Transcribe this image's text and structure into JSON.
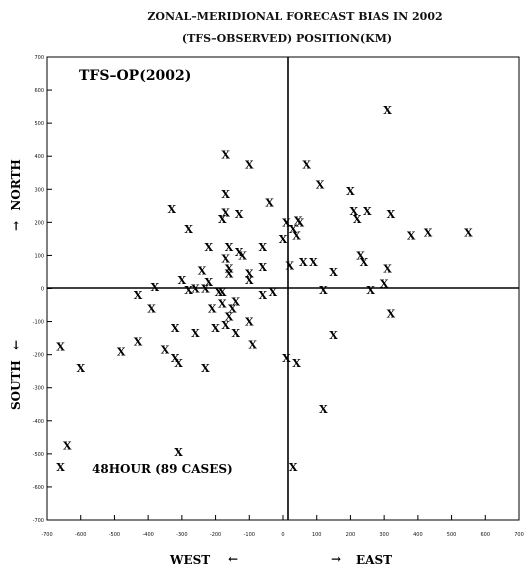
{
  "chart_data": {
    "type": "scatter",
    "title": "ZONAL–MERIDIONAL FORECAST BIAS IN 2002",
    "subtitle": "(TFS–OBSERVED) POSITION(KM)",
    "xlabel_left": "WEST",
    "xlabel_right": "EAST",
    "ylabel_top": "NORTH",
    "ylabel_bottom": "SOUTH",
    "ylabel_top_arrow": "→",
    "ylabel_bottom_arrow": "←",
    "xlabel_left_arrow": "←",
    "xlabel_right_arrow": "→",
    "annotation_top": "TFS–OP(2002)",
    "annotation_bottom": "48HOUR (89 CASES)",
    "marker": "X",
    "xlim": [
      -700,
      700
    ],
    "ylim": [
      -700,
      700
    ],
    "grid": false,
    "x_tick_labels": [
      "-700",
      "-600",
      "-500",
      "-400",
      "-300",
      "-200",
      "-100",
      "0",
      "100",
      "200",
      "300",
      "400",
      "500",
      "600",
      "700"
    ],
    "y_tick_labels": [
      "700",
      "600",
      "500",
      "400",
      "300",
      "200",
      "100",
      "0",
      "-100",
      "-200",
      "-300",
      "-400",
      "-500",
      "-600",
      "-700"
    ],
    "points": [
      [
        310,
        540
      ],
      [
        -170,
        405
      ],
      [
        -100,
        375
      ],
      [
        70,
        375
      ],
      [
        110,
        315
      ],
      [
        200,
        295
      ],
      [
        -170,
        285
      ],
      [
        -40,
        260
      ],
      [
        -330,
        240
      ],
      [
        -170,
        230
      ],
      [
        210,
        235
      ],
      [
        250,
        235
      ],
      [
        320,
        225
      ],
      [
        -180,
        210
      ],
      [
        220,
        210
      ],
      [
        -280,
        180
      ],
      [
        380,
        160
      ],
      [
        430,
        170
      ],
      [
        550,
        170
      ],
      [
        0,
        150
      ],
      [
        40,
        160
      ],
      [
        30,
        180
      ],
      [
        50,
        200
      ],
      [
        45,
        205
      ],
      [
        -220,
        125
      ],
      [
        -160,
        125
      ],
      [
        -130,
        110
      ],
      [
        -120,
        100
      ],
      [
        -60,
        125
      ],
      [
        10,
        200
      ],
      [
        -170,
        90
      ],
      [
        -100,
        45
      ],
      [
        -240,
        55
      ],
      [
        -160,
        60
      ],
      [
        -60,
        65
      ],
      [
        20,
        70
      ],
      [
        60,
        80
      ],
      [
        90,
        80
      ],
      [
        150,
        50
      ],
      [
        230,
        100
      ],
      [
        240,
        80
      ],
      [
        310,
        60
      ],
      [
        -300,
        25
      ],
      [
        -220,
        20
      ],
      [
        -100,
        25
      ],
      [
        -380,
        5
      ],
      [
        -280,
        -5
      ],
      [
        -260,
        0
      ],
      [
        -180,
        -10
      ],
      [
        -140,
        -40
      ],
      [
        -60,
        -20
      ],
      [
        -30,
        -10
      ],
      [
        120,
        -5
      ],
      [
        260,
        -5
      ],
      [
        300,
        15
      ],
      [
        -430,
        -20
      ],
      [
        -390,
        -60
      ],
      [
        -180,
        -45
      ],
      [
        -150,
        -60
      ],
      [
        -160,
        -85
      ],
      [
        -100,
        -100
      ],
      [
        320,
        -75
      ],
      [
        -320,
        -120
      ],
      [
        -260,
        -135
      ],
      [
        -200,
        -120
      ],
      [
        -170,
        -110
      ],
      [
        -140,
        -135
      ],
      [
        -90,
        -170
      ],
      [
        150,
        -140
      ],
      [
        -660,
        -175
      ],
      [
        -480,
        -190
      ],
      [
        -430,
        -160
      ],
      [
        -350,
        -185
      ],
      [
        -320,
        -210
      ],
      [
        -310,
        -225
      ],
      [
        -230,
        -240
      ],
      [
        -600,
        -240
      ],
      [
        10,
        -210
      ],
      [
        40,
        -225
      ],
      [
        120,
        -365
      ],
      [
        -640,
        -475
      ],
      [
        -310,
        -495
      ],
      [
        -660,
        -540
      ],
      [
        30,
        -540
      ],
      [
        -130,
        225
      ],
      [
        -160,
        45
      ],
      [
        -190,
        -10
      ],
      [
        -210,
        -60
      ],
      [
        -230,
        0
      ]
    ]
  }
}
